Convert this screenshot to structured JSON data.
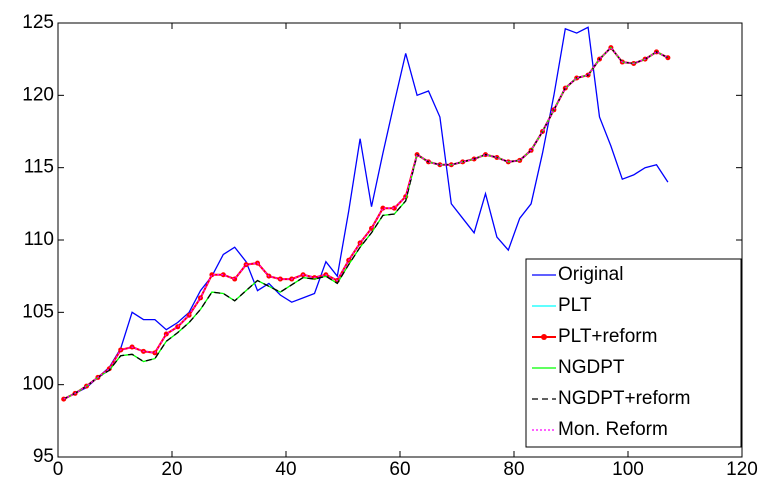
{
  "chart_data": {
    "type": "line",
    "x": [
      1,
      3,
      5,
      7,
      9,
      11,
      13,
      15,
      17,
      19,
      21,
      23,
      25,
      27,
      29,
      31,
      33,
      35,
      37,
      39,
      41,
      43,
      45,
      47,
      49,
      51,
      53,
      55,
      57,
      59,
      61,
      63,
      65,
      67,
      69,
      71,
      73,
      75,
      77,
      79,
      81,
      83,
      85,
      87,
      89,
      91,
      93,
      95,
      97,
      99,
      101,
      103,
      105,
      107
    ],
    "series": [
      {
        "name": "Original",
        "color": "#0000ff",
        "linestyle": "-",
        "marker": null,
        "values": [
          99,
          99.4,
          99.8,
          100.5,
          101.2,
          102.5,
          105,
          104.5,
          104.5,
          103.8,
          104.3,
          105,
          106.5,
          107.5,
          109,
          109.5,
          108.5,
          106.5,
          107,
          106.2,
          105.7,
          106,
          106.3,
          108.5,
          107.5,
          112,
          117,
          112.3,
          116,
          119.5,
          122.9,
          120,
          120.3,
          118.5,
          112.5,
          111.5,
          110.5,
          113.2,
          110.2,
          109.3,
          111.5,
          112.5,
          116,
          120,
          124.6,
          124.3,
          124.7,
          118.5,
          116.5,
          114.2,
          114.5,
          115,
          115.2,
          114
        ]
      },
      {
        "name": "PLT",
        "color": "#00ffff",
        "linestyle": "-",
        "marker": null,
        "values": [
          99,
          99.4,
          99.9,
          100.5,
          101.1,
          102.4,
          102.6,
          102.3,
          102.2,
          103.5,
          104,
          104.8,
          106,
          107.6,
          107.6,
          107.3,
          108.3,
          108.4,
          107.5,
          107.3,
          107.3,
          107.6,
          107.4,
          107.6,
          107.2,
          108.6,
          109.8,
          110.8,
          112.2,
          112.2,
          113,
          115.9,
          115.4,
          115.2,
          115.2,
          115.4,
          115.6,
          115.9,
          115.7,
          115.4,
          115.5,
          116.2,
          117.5,
          119,
          120.5,
          121.2,
          121.4,
          122.5,
          123.3,
          122.3,
          122.2,
          122.5,
          123,
          122.6
        ]
      },
      {
        "name": "PLT+reform",
        "color": "#ff0000",
        "linestyle": "-",
        "marker": "o",
        "values": [
          99,
          99.4,
          99.9,
          100.5,
          101.1,
          102.4,
          102.6,
          102.3,
          102.2,
          103.5,
          104,
          104.8,
          106,
          107.6,
          107.6,
          107.3,
          108.3,
          108.4,
          107.5,
          107.3,
          107.3,
          107.6,
          107.4,
          107.6,
          107.2,
          108.6,
          109.8,
          110.8,
          112.2,
          112.2,
          113,
          115.9,
          115.4,
          115.2,
          115.2,
          115.4,
          115.6,
          115.9,
          115.7,
          115.4,
          115.5,
          116.2,
          117.5,
          119,
          120.5,
          121.2,
          121.4,
          122.5,
          123.3,
          122.3,
          122.2,
          122.5,
          123,
          122.6
        ]
      },
      {
        "name": "NGDPT",
        "color": "#00ff00",
        "linestyle": "-",
        "marker": null,
        "values": [
          99,
          99.4,
          99.9,
          100.5,
          101,
          102,
          102.1,
          101.6,
          101.8,
          103,
          103.6,
          104.3,
          105.2,
          106.4,
          106.3,
          105.8,
          106.5,
          107.2,
          106.8,
          106.4,
          106.9,
          107.4,
          107.3,
          107.5,
          107,
          108.3,
          109.5,
          110.5,
          111.7,
          111.8,
          112.7,
          115.9,
          115.4,
          115.2,
          115.2,
          115.4,
          115.6,
          115.9,
          115.7,
          115.4,
          115.5,
          116.2,
          117.5,
          119,
          120.5,
          121.2,
          121.4,
          122.5,
          123.3,
          122.3,
          122.2,
          122.5,
          123,
          122.6
        ]
      },
      {
        "name": "NGDPT+reform",
        "color": "#000000",
        "linestyle": "--",
        "marker": null,
        "values": [
          99,
          99.4,
          99.9,
          100.5,
          101,
          102,
          102.1,
          101.6,
          101.8,
          103,
          103.6,
          104.3,
          105.2,
          106.4,
          106.3,
          105.8,
          106.5,
          107.2,
          106.8,
          106.4,
          106.9,
          107.4,
          107.3,
          107.5,
          107,
          108.3,
          109.5,
          110.5,
          111.7,
          111.8,
          112.7,
          115.9,
          115.4,
          115.2,
          115.2,
          115.4,
          115.6,
          115.9,
          115.7,
          115.4,
          115.5,
          116.2,
          117.5,
          119,
          120.5,
          121.2,
          121.4,
          122.5,
          123.3,
          122.3,
          122.2,
          122.5,
          123,
          122.6
        ]
      },
      {
        "name": "Mon. Reform",
        "color": "#ff00ff",
        "linestyle": ":",
        "marker": null,
        "values": [
          99,
          99.4,
          99.9,
          100.5,
          101.1,
          102.4,
          102.6,
          102.3,
          102.2,
          103.5,
          104,
          104.8,
          106,
          107.6,
          107.6,
          107.3,
          108.3,
          108.4,
          107.5,
          107.3,
          107.3,
          107.6,
          107.4,
          107.6,
          107.2,
          108.6,
          109.8,
          110.8,
          112.2,
          112.2,
          113,
          115.9,
          115.4,
          115.2,
          115.2,
          115.4,
          115.6,
          115.9,
          115.7,
          115.4,
          115.5,
          116.2,
          117.5,
          119,
          120.5,
          121.2,
          121.4,
          122.5,
          123.3,
          122.3,
          122.2,
          122.5,
          123,
          122.6
        ]
      }
    ],
    "xlim": [
      0,
      120
    ],
    "xticks": [
      0,
      20,
      40,
      60,
      80,
      100,
      120
    ],
    "ylim": [
      95,
      125
    ],
    "yticks": [
      95,
      100,
      105,
      110,
      115,
      120,
      125
    ],
    "legend": "lower right"
  }
}
